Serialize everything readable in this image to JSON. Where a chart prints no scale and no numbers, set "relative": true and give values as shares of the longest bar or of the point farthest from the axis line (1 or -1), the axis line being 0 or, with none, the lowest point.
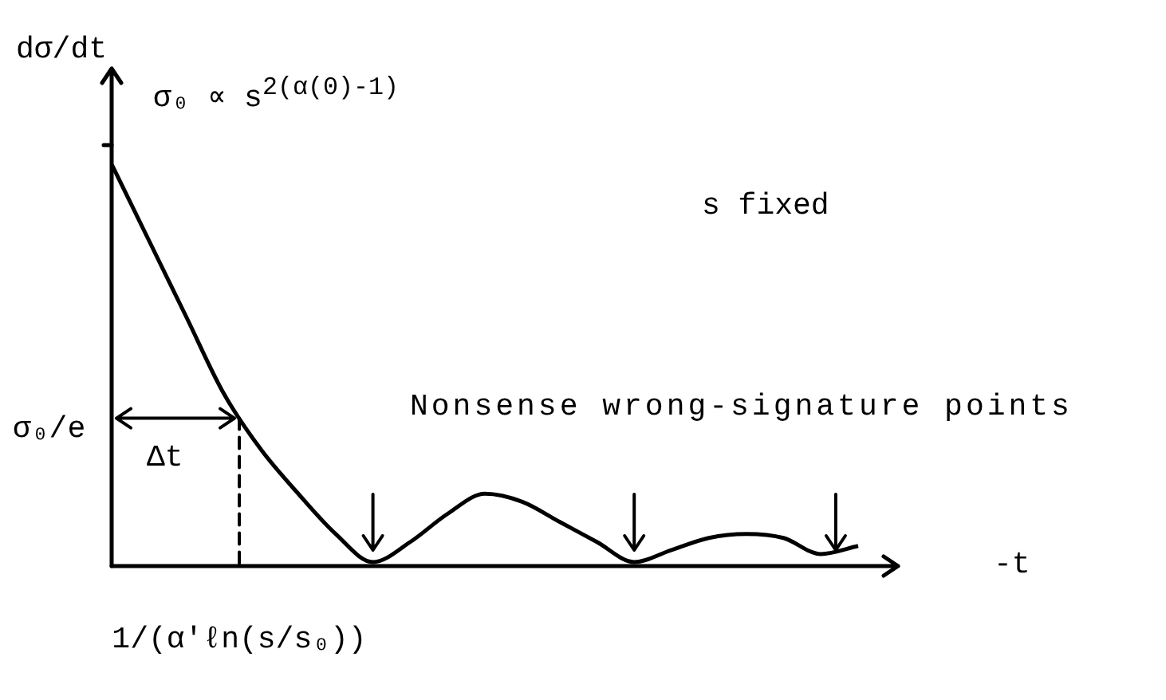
{
  "chart_data": {
    "type": "line",
    "relative": true,
    "xlabel": "-t",
    "ylabel": "dσ/dt",
    "marker": "none",
    "categories": [
      null,
      null,
      null,
      null,
      null,
      null,
      null,
      null,
      null,
      null,
      null,
      null,
      null,
      null,
      null,
      null,
      null,
      null,
      null,
      null,
      null
    ],
    "series": [
      {
        "color": "#000000",
        "values": [
          1,
          0.81,
          0.62,
          0.43,
          0.29,
          0.18,
          0.08,
          0.01,
          0.06,
          0.13,
          0.18,
          0.16,
          0.11,
          0.06,
          0.01,
          0.04,
          0.07,
          0.08,
          0.07,
          0.03,
          0.05
        ]
      }
    ],
    "annotations": [
      "σ₀ ∝ s$^{2(α(0)-1)}$",
      "s fixed",
      "Nonsense wrong-signature points",
      "Δt",
      "1/(α′ℓn(s/s₀))",
      "σ₀/e"
    ]
  }
}
